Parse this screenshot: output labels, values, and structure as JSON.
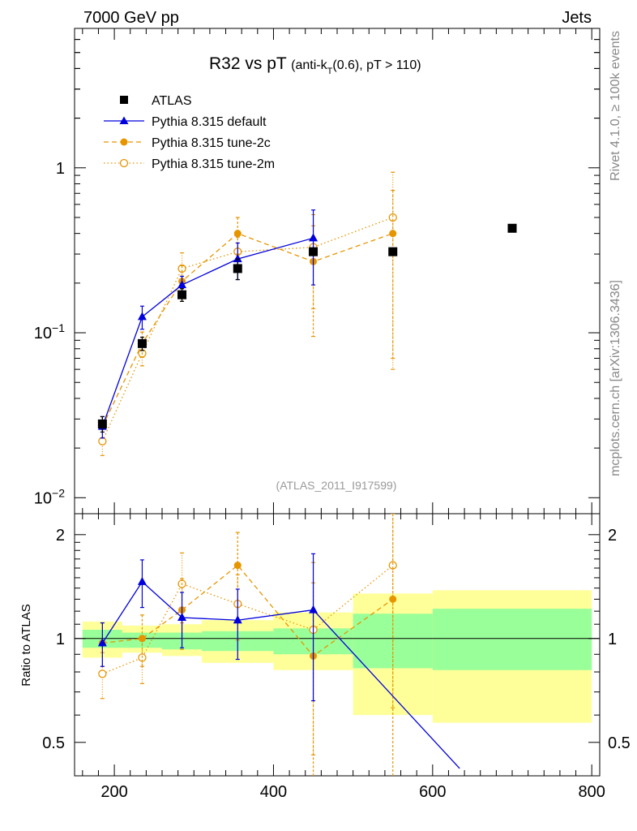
{
  "header": {
    "left": "7000 GeV pp",
    "right": "Jets",
    "side_top": "Rivet 4.1.0, ≥ 100k events",
    "side_bottom": "mcplots.cern.ch [arXiv:1306.3436]"
  },
  "chart_data": [
    {
      "type": "scatter",
      "title": "R32 vs pT",
      "subtitle": "(anti-k_T(0.6), pT > 110)",
      "title_parts": {
        "main": "R32 vs pT",
        "a": "(anti-k",
        "sub": "T",
        "b": "(0.6), pT > 110)"
      },
      "watermark": "(ATLAS_2011_I917599)",
      "xlabel": "",
      "ylabel": "",
      "xlim": [
        150,
        810
      ],
      "ylog": true,
      "ylim": [
        0.008,
        7.0
      ],
      "y_ticks": [
        {
          "value": 1,
          "label": "1"
        },
        {
          "value": 0.1,
          "base": "10",
          "exp": "−1"
        },
        {
          "value": 0.01,
          "base": "10",
          "exp": "−2"
        }
      ],
      "legend_position": "top-left",
      "series": [
        {
          "name": "ATLAS",
          "color": "#000000",
          "marker": "square",
          "x": [
            185,
            235,
            285,
            355,
            450,
            550,
            700
          ],
          "y": [
            0.028,
            0.086,
            0.17,
            0.245,
            0.31,
            0.31,
            0.43
          ],
          "err": [
            0.003,
            0.008,
            0.015,
            0.035,
            0.0,
            0.0,
            0.0
          ]
        },
        {
          "name": "Pythia 8.315 default",
          "color": "#0000dd",
          "marker": "triangle",
          "line": "solid",
          "x": [
            185,
            235,
            285,
            355,
            450
          ],
          "y": [
            0.027,
            0.125,
            0.195,
            0.28,
            0.375
          ],
          "err": [
            0.004,
            0.02,
            0.025,
            0.07,
            0.18
          ]
        },
        {
          "name": "Pythia 8.315 tune-2c",
          "color": "#e69500",
          "marker": "circle",
          "line": "dashed",
          "x": [
            185,
            235,
            285,
            355,
            450,
            550
          ],
          "y": [
            0.027,
            0.086,
            0.205,
            0.4,
            0.27,
            0.4
          ],
          "err": [
            0.004,
            0.015,
            0.05,
            0.1,
            0.175,
            0.33
          ]
        },
        {
          "name": "Pythia 8.315 tune-2m",
          "color": "#e69500",
          "marker": "open-circle",
          "line": "dotted",
          "x": [
            185,
            235,
            285,
            355,
            450,
            550
          ],
          "y": [
            0.022,
            0.075,
            0.245,
            0.31,
            0.33,
            0.5
          ],
          "err": [
            0.004,
            0.012,
            0.06,
            0.07,
            0.19,
            0.44
          ]
        }
      ]
    },
    {
      "type": "line",
      "title": "",
      "xlabel": "",
      "ylabel": "Ratio to ATLAS",
      "xlim": [
        150,
        810
      ],
      "ylim": [
        0.4,
        2.3
      ],
      "x_ticks": [
        200,
        400,
        600,
        800
      ],
      "y_ticks": [
        0.5,
        1,
        2
      ],
      "bands": {
        "edges": [
          160,
          210,
          260,
          310,
          400,
          500,
          600,
          800
        ],
        "stat_lo": [
          0.94,
          0.94,
          0.93,
          0.92,
          0.9,
          0.82,
          0.81
        ],
        "stat_hi": [
          1.06,
          1.04,
          1.04,
          1.05,
          1.07,
          1.18,
          1.22
        ],
        "syst_lo": [
          0.88,
          0.91,
          0.89,
          0.85,
          0.81,
          0.6,
          0.57
        ],
        "syst_hi": [
          1.12,
          1.09,
          1.1,
          1.13,
          1.19,
          1.35,
          1.38
        ]
      },
      "series": [
        {
          "name": "Pythia 8.315 default",
          "color": "#0000dd",
          "marker": "triangle",
          "line": "solid",
          "x": [
            185,
            235,
            285,
            355,
            450,
            634
          ],
          "y": [
            0.97,
            1.46,
            1.15,
            1.13,
            1.21,
            0.42
          ],
          "err": [
            0.14,
            0.23,
            0.21,
            0.26,
            0.55,
            0
          ],
          "show": [
            true,
            true,
            true,
            true,
            true,
            false
          ]
        },
        {
          "name": "Pythia 8.315 tune-2c",
          "color": "#e69500",
          "marker": "circle",
          "line": "dashed",
          "x": [
            185,
            235,
            285,
            355,
            450,
            550
          ],
          "y": [
            0.97,
            1.0,
            1.21,
            1.63,
            0.89,
            1.3
          ],
          "err": [
            0.14,
            0.17,
            0.28,
            0.4,
            0.56,
            1.0
          ],
          "show": [
            true,
            true,
            true,
            true,
            true,
            true
          ]
        },
        {
          "name": "Pythia 8.315 tune-2m",
          "color": "#e69500",
          "marker": "open-circle",
          "line": "dotted",
          "x": [
            185,
            235,
            285,
            355,
            450,
            550
          ],
          "y": [
            0.79,
            0.88,
            1.44,
            1.26,
            1.06,
            1.63
          ],
          "err": [
            0.12,
            0.14,
            0.33,
            0.27,
            0.6,
            1.0
          ],
          "show": [
            true,
            true,
            true,
            true,
            true,
            true
          ]
        }
      ]
    }
  ]
}
